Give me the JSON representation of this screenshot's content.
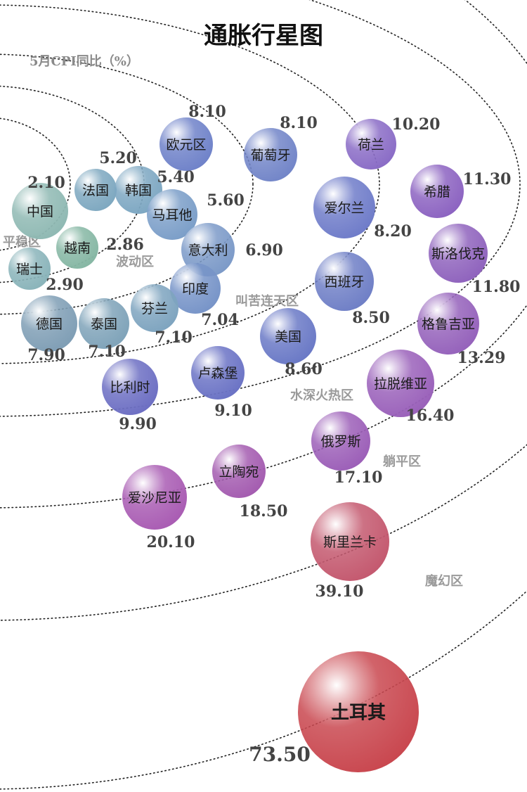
{
  "chart_data": {
    "type": "scatter",
    "title": "通胀行星图",
    "subtitle": "5月CPI同比（%）",
    "zones": [
      {
        "label": "平稳区"
      },
      {
        "label": "波动区"
      },
      {
        "label": "叫苦连天区"
      },
      {
        "label": "水深火热区"
      },
      {
        "label": "躺平区"
      },
      {
        "label": "魔幻区"
      }
    ],
    "points": [
      {
        "name": "中国",
        "value": "2.10",
        "color": "#8fb9b3"
      },
      {
        "name": "越南",
        "value": "2.86",
        "color": "#86b7a4"
      },
      {
        "name": "瑞士",
        "value": "2.90",
        "color": "#8ab4ba"
      },
      {
        "name": "法国",
        "value": "5.20",
        "color": "#7ea8c0"
      },
      {
        "name": "韩国",
        "value": "5.40",
        "color": "#7da7c2"
      },
      {
        "name": "马耳他",
        "value": "5.60",
        "color": "#7b9ec8"
      },
      {
        "name": "意大利",
        "value": "6.90",
        "color": "#7c9ac8"
      },
      {
        "name": "印度",
        "value": "7.04",
        "color": "#7794c8"
      },
      {
        "name": "芬兰",
        "value": "7.10",
        "color": "#7ea4bf"
      },
      {
        "name": "泰国",
        "value": "7.10",
        "color": "#7fa3b9"
      },
      {
        "name": "德国",
        "value": "7.90",
        "color": "#7f9eb5"
      },
      {
        "name": "欧元区",
        "value": "8.10",
        "color": "#6f82c9"
      },
      {
        "name": "葡萄牙",
        "value": "8.10",
        "color": "#7285c8"
      },
      {
        "name": "爱尔兰",
        "value": "8.20",
        "color": "#6f7cc9"
      },
      {
        "name": "西班牙",
        "value": "8.50",
        "color": "#6f7fc6"
      },
      {
        "name": "美国",
        "value": "8.60",
        "color": "#6a79c6"
      },
      {
        "name": "卢森堡",
        "value": "9.10",
        "color": "#6b73c5"
      },
      {
        "name": "比利时",
        "value": "9.90",
        "color": "#6d6fc3"
      },
      {
        "name": "荷兰",
        "value": "10.20",
        "color": "#8a6cc6"
      },
      {
        "name": "希腊",
        "value": "11.30",
        "color": "#8c63c1"
      },
      {
        "name": "斯洛伐克",
        "value": "11.80",
        "color": "#8f63bd"
      },
      {
        "name": "格鲁吉亚",
        "value": "13.29",
        "color": "#9562bb"
      },
      {
        "name": "拉脱维亚",
        "value": "16.40",
        "color": "#9a61ba"
      },
      {
        "name": "俄罗斯",
        "value": "17.10",
        "color": "#9c5fb8"
      },
      {
        "name": "立陶宛",
        "value": "18.50",
        "color": "#a45cb0"
      },
      {
        "name": "爱沙尼亚",
        "value": "20.10",
        "color": "#a95cb3"
      },
      {
        "name": "斯里兰卡",
        "value": "39.10",
        "color": "#c4596f"
      },
      {
        "name": "土耳其",
        "value": "73.50",
        "color": "#c9474f"
      }
    ]
  }
}
